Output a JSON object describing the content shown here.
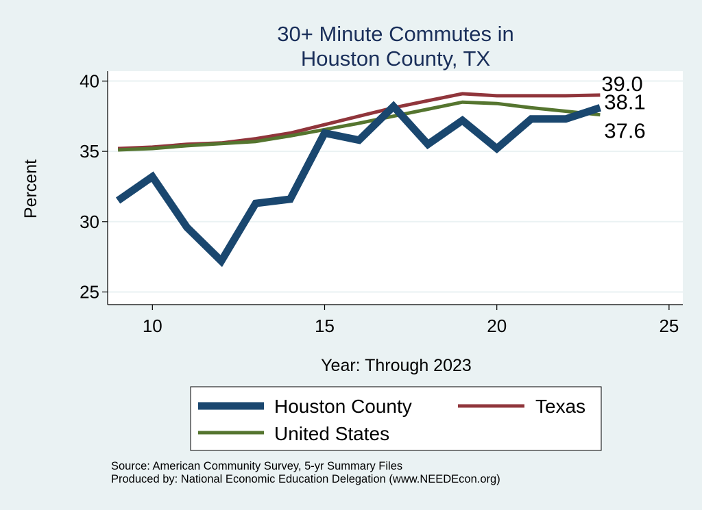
{
  "chart_data": {
    "type": "line",
    "title_lines": [
      "30+ Minute Commutes in",
      "Houston County, TX"
    ],
    "xlabel": "Year: Through 2023",
    "ylabel": "Percent",
    "xlim": [
      8.7,
      25.4
    ],
    "ylim": [
      24.1,
      40.7
    ],
    "xticks": [
      10,
      15,
      20,
      25
    ],
    "yticks": [
      25,
      30,
      35,
      40
    ],
    "grid": true,
    "legend_position": "bottom",
    "x": [
      9,
      10,
      11,
      12,
      13,
      14,
      15,
      16,
      17,
      18,
      19,
      20,
      21,
      22,
      23
    ],
    "series": [
      {
        "name": "Houston County",
        "color": "#1a476f",
        "values": [
          31.5,
          33.2,
          29.6,
          27.2,
          31.3,
          31.6,
          36.3,
          35.8,
          38.2,
          35.5,
          37.2,
          35.2,
          37.3,
          37.3,
          38.1
        ],
        "end_label": "38.1"
      },
      {
        "name": "Texas",
        "color": "#90353b",
        "values": [
          35.2,
          35.3,
          35.5,
          35.6,
          35.9,
          36.3,
          36.9,
          37.5,
          38.1,
          38.6,
          39.1,
          38.95,
          38.95,
          38.95,
          39.0
        ],
        "end_label": "39.0"
      },
      {
        "name": "United States",
        "color": "#55752f",
        "values": [
          35.1,
          35.2,
          35.4,
          35.55,
          35.7,
          36.1,
          36.55,
          37.0,
          37.5,
          38.0,
          38.5,
          38.4,
          38.1,
          37.85,
          37.6
        ],
        "end_label": "37.6"
      }
    ]
  },
  "source_lines": [
    "Source: American Community Survey, 5-yr Summary Files",
    "Produced by: National Economic Education Delegation (www.NEEDEcon.org)"
  ]
}
